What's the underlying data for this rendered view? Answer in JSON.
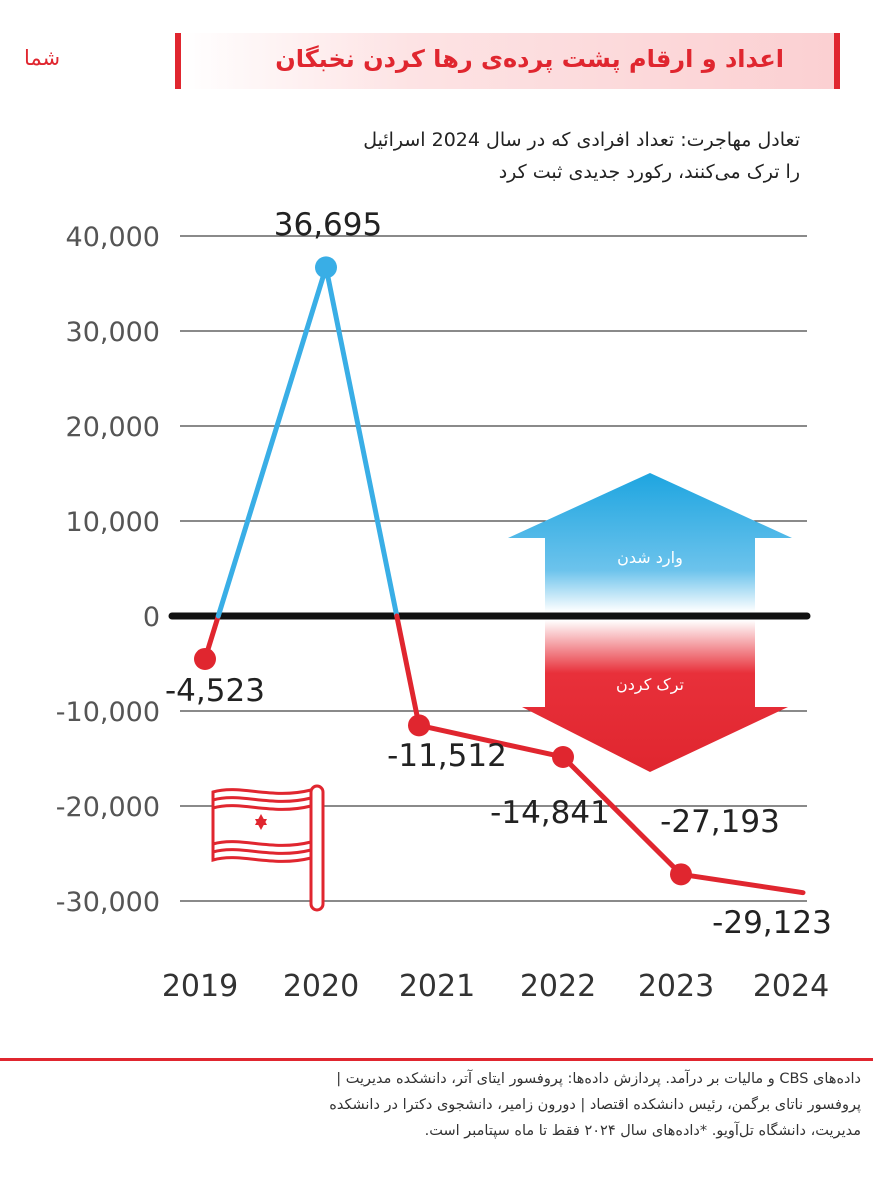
{
  "brand": {
    "logo_text": "شما"
  },
  "header": {
    "title": "اعداد و ارقام پشت پرده‌ی رها کردن نخبگان"
  },
  "subtitle": {
    "line1": "تعادل مهاجرت: تعداد افرادی که در سال 2024 اسرائیل",
    "line2": "را ترک می‌کنند، رکورد جدیدی ثبت کرد"
  },
  "arrow": {
    "up_label": "وارد شدن",
    "down_label": "ترک کردن"
  },
  "colors": {
    "accent": "#e0262f",
    "positive_line": "#39aee6",
    "negative_line": "#e0262f",
    "zero_line": "#111111",
    "grid": "#444444"
  },
  "chart_data": {
    "type": "line",
    "categories": [
      "2019",
      "2020",
      "2021",
      "2022",
      "2023",
      "2024"
    ],
    "values": [
      -4523,
      36695,
      -11512,
      -14841,
      -27193,
      -29123
    ],
    "value_labels": [
      "-4,523",
      "36,695",
      "-11,512",
      "-14,841",
      "-27,193",
      "-29,123"
    ],
    "y_ticks": [
      40000,
      30000,
      20000,
      10000,
      0,
      -10000,
      -20000,
      -30000
    ],
    "y_tick_labels": [
      "40,000",
      "30,000",
      "20,000",
      "10,000",
      "0",
      "-10,000",
      "-20,000",
      "-30,000"
    ],
    "ylim": [
      -30000,
      40000
    ],
    "grid": true,
    "last_label_highlighted": true
  },
  "footer": {
    "line1": "داده‌های CBS و مالیات بر درآمد. پردازش داده‌ها: پروفسور ایتای آتر، دانشکده مدیریت |",
    "line2": "پروفسور ناتای برگمن، رئیس دانشکده اقتصاد          | دورون زامیر، دانشجوی دکترا در دانشکده",
    "line3": "مدیریت، دانشگاه تل‌آویو. *داده‌های سال ۲۰۲۴ فقط تا ماه سپتامبر است."
  }
}
